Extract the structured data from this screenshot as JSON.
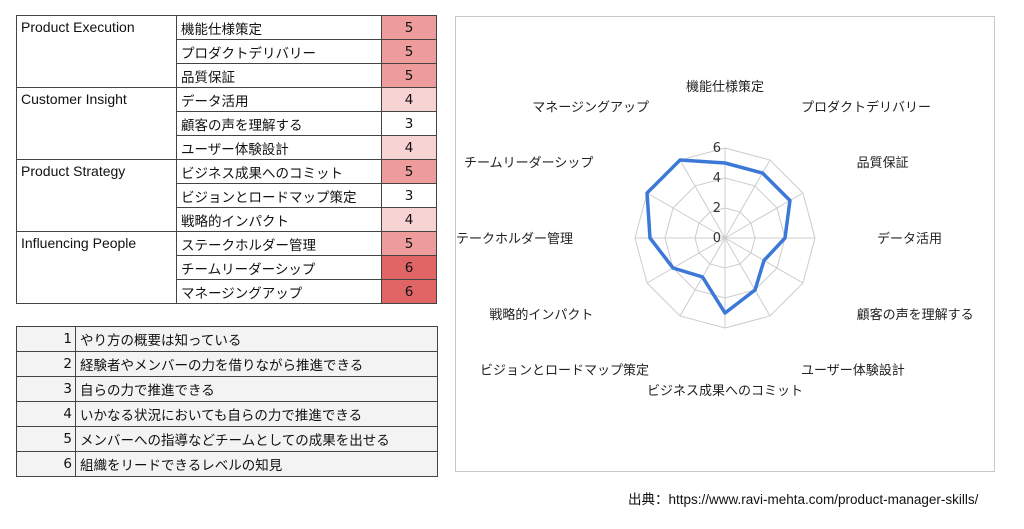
{
  "skills_table": [
    {
      "category": "Product Execution",
      "skills": [
        {
          "name": "機能仕様策定",
          "score": 5
        },
        {
          "name": "プロダクトデリバリー",
          "score": 5
        },
        {
          "name": "品質保証",
          "score": 5
        }
      ]
    },
    {
      "category": "Customer Insight",
      "skills": [
        {
          "name": "データ活用",
          "score": 4
        },
        {
          "name": "顧客の声を理解する",
          "score": 3
        },
        {
          "name": "ユーザー体験設計",
          "score": 4
        }
      ]
    },
    {
      "category": "Product Strategy",
      "skills": [
        {
          "name": "ビジネス成果へのコミット",
          "score": 5
        },
        {
          "name": "ビジョンとロードマップ策定",
          "score": 3
        },
        {
          "name": "戦略的インパクト",
          "score": 4
        }
      ]
    },
    {
      "category": "Influencing People",
      "skills": [
        {
          "name": "ステークホルダー管理",
          "score": 5
        },
        {
          "name": "チームリーダーシップ",
          "score": 6
        },
        {
          "name": "マネージングアップ",
          "score": 6
        }
      ]
    }
  ],
  "score_colors": {
    "3": "#ffffff",
    "4": "#f7d3d3",
    "5": "#ee9b9b",
    "6": "#e06666"
  },
  "legend": [
    {
      "level": "1",
      "text": "やり方の概要は知っている"
    },
    {
      "level": "2",
      "text": "経験者やメンバーの力を借りながら推進できる"
    },
    {
      "level": "3",
      "text": "自らの力で推進できる"
    },
    {
      "level": "4",
      "text": "いかなる状況においても自らの力で推進できる"
    },
    {
      "level": "5",
      "text": "メンバーへの指導などチームとしての成果を出せる"
    },
    {
      "level": "6",
      "text": "組織をリードできるレベルの知見"
    }
  ],
  "chart_data": {
    "type": "radar",
    "categories": [
      "機能仕様策定",
      "プロダクトデリバリー",
      "品質保証",
      "データ活用",
      "顧客の声を理解する",
      "ユーザー体験設計",
      "ビジネス成果へのコミット",
      "ビジョンとロードマップ策定",
      "戦略的インパクト",
      "ステークホルダー管理",
      "チームリーダーシップ",
      "マネージングアップ"
    ],
    "values": [
      5,
      5,
      5,
      4,
      3,
      4,
      5,
      3,
      4,
      5,
      6,
      6
    ],
    "rlim": [
      0,
      6
    ],
    "ticks": [
      "0",
      "2",
      "4",
      "6"
    ],
    "line_color": "#3c78d8",
    "grid": true,
    "legend": false
  },
  "source_text": "出典：https://www.ravi-mehta.com/product-manager-skills/"
}
